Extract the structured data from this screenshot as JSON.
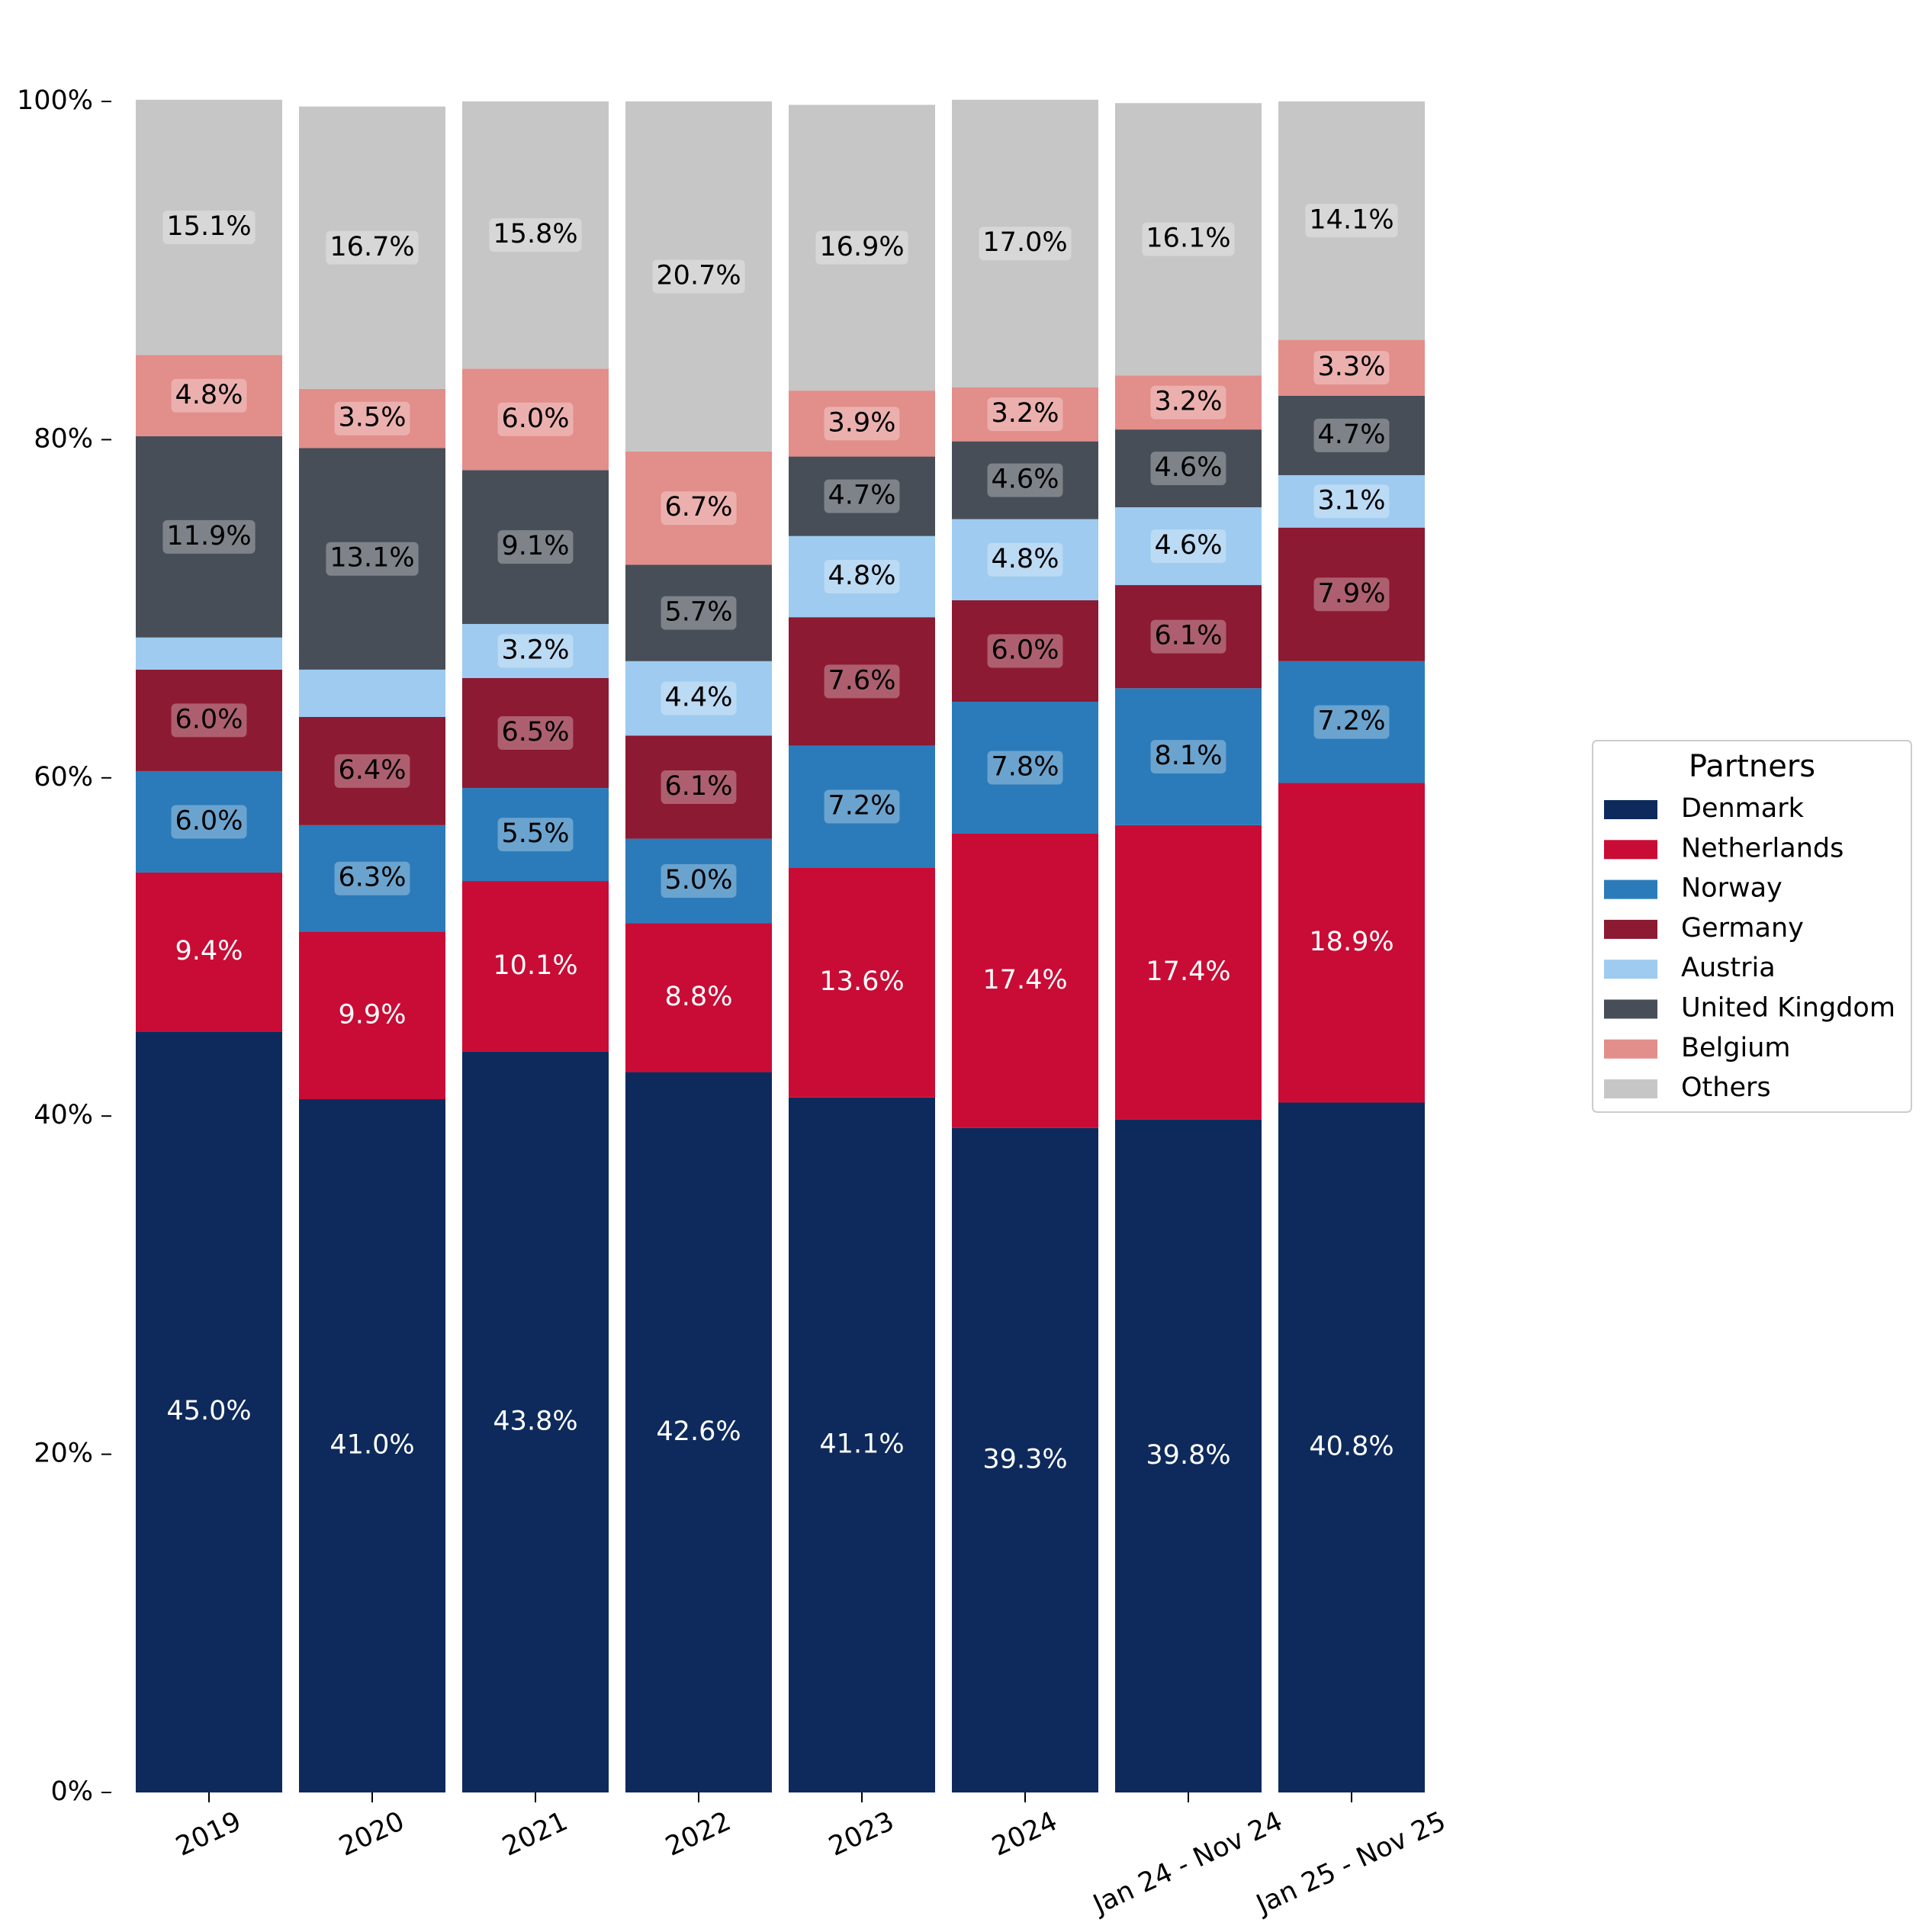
{
  "chart_data": {
    "type": "stacked_bar",
    "categories": [
      "2019",
      "2020",
      "2021",
      "2022",
      "2023",
      "2024",
      "Jan 24 - Nov 24",
      "Jan 25 - Nov 25"
    ],
    "series": [
      {
        "name": "Denmark",
        "color": "#0e2a5c",
        "values": [
          45.0,
          41.0,
          43.8,
          42.6,
          41.1,
          39.3,
          39.8,
          40.8
        ],
        "value_labels": [
          "45.0%",
          "41.0%",
          "43.8%",
          "42.6%",
          "41.1%",
          "39.3%",
          "39.8%",
          "40.8%"
        ]
      },
      {
        "name": "Netherlands",
        "color": "#c90c35",
        "values": [
          9.4,
          9.9,
          10.1,
          8.8,
          13.6,
          17.4,
          17.4,
          18.9
        ],
        "value_labels": [
          "9.4%",
          "9.9%",
          "10.1%",
          "8.8%",
          "13.6%",
          "17.4%",
          "17.4%",
          "18.9%"
        ]
      },
      {
        "name": "Norway",
        "color": "#2b7bba",
        "values": [
          6.0,
          6.3,
          5.5,
          5.0,
          7.2,
          7.8,
          8.1,
          7.2
        ],
        "value_labels": [
          "6.0%",
          "6.3%",
          "5.5%",
          "5.0%",
          "7.2%",
          "7.8%",
          "8.1%",
          "7.2%"
        ]
      },
      {
        "name": "Germany",
        "color": "#8b1a32",
        "values": [
          6.0,
          6.4,
          6.5,
          6.1,
          7.6,
          6.0,
          6.1,
          7.9
        ],
        "value_labels": [
          "6.0%",
          "6.4%",
          "6.5%",
          "6.1%",
          "7.6%",
          "6.0%",
          "6.1%",
          "7.9%"
        ]
      },
      {
        "name": "Austria",
        "color": "#9ecbef",
        "values": [
          1.9,
          2.8,
          3.2,
          4.4,
          4.8,
          4.8,
          4.6,
          3.1
        ],
        "value_labels": [
          null,
          null,
          "3.2%",
          "4.4%",
          "4.8%",
          "4.8%",
          "4.6%",
          "3.1%"
        ]
      },
      {
        "name": "United Kingdom",
        "color": "#474e58",
        "values": [
          11.9,
          13.1,
          9.1,
          5.7,
          4.7,
          4.6,
          4.6,
          4.7
        ],
        "value_labels": [
          "11.9%",
          "13.1%",
          "9.1%",
          "5.7%",
          "4.7%",
          "4.6%",
          "4.6%",
          "4.7%"
        ]
      },
      {
        "name": "Belgium",
        "color": "#e28e8b",
        "values": [
          4.8,
          3.5,
          6.0,
          6.7,
          3.9,
          3.2,
          3.2,
          3.3
        ],
        "value_labels": [
          "4.8%",
          "3.5%",
          "6.0%",
          "6.7%",
          "3.9%",
          "3.2%",
          "3.2%",
          "3.3%"
        ]
      },
      {
        "name": "Others",
        "color": "#c6c6c6",
        "values": [
          15.1,
          16.7,
          15.8,
          20.7,
          16.9,
          17.0,
          16.1,
          14.1
        ],
        "value_labels": [
          "15.1%",
          "16.7%",
          "15.8%",
          "20.7%",
          "16.9%",
          "17.0%",
          "16.1%",
          "14.1%"
        ]
      }
    ],
    "ylim": [
      0,
      100
    ],
    "yticks": [
      {
        "value": 0,
        "label": "0%"
      },
      {
        "value": 20,
        "label": "20%"
      },
      {
        "value": 40,
        "label": "40%"
      },
      {
        "value": 60,
        "label": "60%"
      },
      {
        "value": 80,
        "label": "80%"
      },
      {
        "value": 100,
        "label": "100%"
      }
    ],
    "legend_title": "Partners",
    "legend_position": "right"
  }
}
